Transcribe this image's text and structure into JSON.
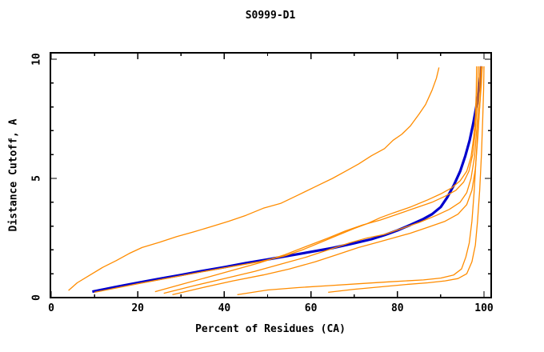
{
  "window": {
    "background": "#ffffff"
  },
  "chart_data": {
    "type": "line",
    "title": "S0999-D1",
    "xlabel": "Percent of Residues (CA)",
    "ylabel": "Distance Cutoff, A",
    "xlim": [
      0,
      100
    ],
    "ylim": [
      0,
      10
    ],
    "grid": false,
    "legend": "none",
    "axis_color": "#000000",
    "x_major_ticks": [
      0,
      20,
      40,
      60,
      80,
      100
    ],
    "x_minor_ticks": [
      10,
      30,
      50,
      70,
      90
    ],
    "x_tick_labels": [
      "0",
      "20",
      "40",
      "60",
      "80",
      "100"
    ],
    "y_major_ticks": [
      0,
      5,
      10
    ],
    "y_minor_ticks": [
      1,
      2,
      3,
      4,
      6,
      7,
      8,
      9
    ],
    "y_tick_labels": [
      "0",
      "5",
      "10"
    ],
    "colors": {
      "highlight_model": "#0000cd",
      "other_models": "#ff8c00"
    },
    "series": [
      {
        "id": "highlight-model",
        "color": "#0000cd",
        "width": 3.2,
        "points": [
          [
            9.5,
            0.25
          ],
          [
            15,
            0.45
          ],
          [
            20,
            0.62
          ],
          [
            25,
            0.79
          ],
          [
            30,
            0.95
          ],
          [
            35,
            1.12
          ],
          [
            40,
            1.28
          ],
          [
            45,
            1.45
          ],
          [
            50,
            1.6
          ],
          [
            55,
            1.76
          ],
          [
            60,
            1.92
          ],
          [
            65,
            2.08
          ],
          [
            70,
            2.28
          ],
          [
            74,
            2.45
          ],
          [
            77,
            2.62
          ],
          [
            80,
            2.82
          ],
          [
            83,
            3.05
          ],
          [
            86,
            3.3
          ],
          [
            88,
            3.5
          ],
          [
            90,
            3.8
          ],
          [
            91.5,
            4.2
          ],
          [
            93,
            4.7
          ],
          [
            94.5,
            5.3
          ],
          [
            95.7,
            5.95
          ],
          [
            96.7,
            6.6
          ],
          [
            97.5,
            7.3
          ],
          [
            98.2,
            8.0
          ],
          [
            98.8,
            8.7
          ],
          [
            99.2,
            9.3
          ],
          [
            99.4,
            9.7
          ]
        ]
      },
      {
        "id": "orange-1",
        "color": "#ff8c00",
        "width": 1.3,
        "points": [
          [
            4,
            0.3
          ],
          [
            6,
            0.62
          ],
          [
            9,
            0.95
          ],
          [
            12,
            1.28
          ],
          [
            15,
            1.55
          ],
          [
            18,
            1.85
          ],
          [
            21,
            2.1
          ],
          [
            25,
            2.32
          ],
          [
            29,
            2.56
          ],
          [
            33,
            2.76
          ],
          [
            37,
            2.98
          ],
          [
            41,
            3.2
          ],
          [
            45,
            3.45
          ],
          [
            49,
            3.75
          ],
          [
            53,
            3.95
          ],
          [
            57,
            4.3
          ],
          [
            61,
            4.65
          ],
          [
            65,
            5.0
          ],
          [
            68,
            5.3
          ],
          [
            71,
            5.6
          ],
          [
            74,
            5.95
          ],
          [
            77,
            6.25
          ],
          [
            79,
            6.6
          ],
          [
            81,
            6.85
          ],
          [
            83,
            7.2
          ],
          [
            85,
            7.7
          ],
          [
            86.5,
            8.1
          ],
          [
            88,
            8.7
          ],
          [
            89,
            9.2
          ],
          [
            89.6,
            9.65
          ]
        ]
      },
      {
        "id": "orange-2",
        "color": "#ff8c00",
        "width": 1.3,
        "points": [
          [
            10,
            0.22
          ],
          [
            20,
            0.58
          ],
          [
            30,
            0.92
          ],
          [
            40,
            1.25
          ],
          [
            48,
            1.5
          ],
          [
            54,
            1.75
          ],
          [
            58,
            2.0
          ],
          [
            62,
            2.3
          ],
          [
            66,
            2.6
          ],
          [
            70,
            2.9
          ],
          [
            73,
            3.1
          ],
          [
            76,
            3.35
          ],
          [
            79,
            3.55
          ],
          [
            83,
            3.8
          ],
          [
            87,
            4.1
          ],
          [
            90,
            4.35
          ],
          [
            92.5,
            4.6
          ],
          [
            94.5,
            4.9
          ],
          [
            96,
            5.3
          ],
          [
            97,
            5.9
          ],
          [
            97.6,
            6.7
          ],
          [
            98,
            7.6
          ],
          [
            98.2,
            8.6
          ],
          [
            98.3,
            9.7
          ]
        ]
      },
      {
        "id": "orange-3",
        "color": "#ff8c00",
        "width": 1.3,
        "points": [
          [
            24,
            0.25
          ],
          [
            30,
            0.55
          ],
          [
            36,
            0.85
          ],
          [
            42,
            1.15
          ],
          [
            48,
            1.45
          ],
          [
            54,
            1.8
          ],
          [
            59,
            2.15
          ],
          [
            64,
            2.5
          ],
          [
            68,
            2.8
          ],
          [
            72,
            3.05
          ],
          [
            76,
            3.25
          ],
          [
            80,
            3.5
          ],
          [
            84,
            3.75
          ],
          [
            88,
            4.0
          ],
          [
            91,
            4.25
          ],
          [
            93.5,
            4.5
          ],
          [
            95.3,
            4.85
          ],
          [
            96.5,
            5.3
          ],
          [
            97.4,
            6.0
          ],
          [
            98,
            7.0
          ],
          [
            98.4,
            8.2
          ],
          [
            98.6,
            9.0
          ],
          [
            98.7,
            9.7
          ]
        ]
      },
      {
        "id": "orange-4",
        "color": "#ff8c00",
        "width": 1.3,
        "points": [
          [
            26,
            0.18
          ],
          [
            33,
            0.5
          ],
          [
            40,
            0.8
          ],
          [
            47,
            1.1
          ],
          [
            53,
            1.4
          ],
          [
            59,
            1.7
          ],
          [
            64,
            2.0
          ],
          [
            69,
            2.3
          ],
          [
            73,
            2.5
          ],
          [
            77,
            2.65
          ],
          [
            81,
            2.9
          ],
          [
            85,
            3.15
          ],
          [
            89,
            3.45
          ],
          [
            92,
            3.7
          ],
          [
            94.5,
            4.0
          ],
          [
            96,
            4.4
          ],
          [
            97,
            5.0
          ],
          [
            97.8,
            5.9
          ],
          [
            98.4,
            7.2
          ],
          [
            98.9,
            8.6
          ],
          [
            99.1,
            9.7
          ]
        ]
      },
      {
        "id": "orange-5",
        "color": "#ff8c00",
        "width": 1.3,
        "points": [
          [
            28,
            0.12
          ],
          [
            35,
            0.42
          ],
          [
            42,
            0.7
          ],
          [
            49,
            0.95
          ],
          [
            55,
            1.2
          ],
          [
            61,
            1.5
          ],
          [
            66,
            1.8
          ],
          [
            71,
            2.1
          ],
          [
            75,
            2.3
          ],
          [
            79,
            2.5
          ],
          [
            83,
            2.7
          ],
          [
            87,
            2.95
          ],
          [
            91,
            3.2
          ],
          [
            94,
            3.5
          ],
          [
            96,
            3.9
          ],
          [
            97.2,
            4.5
          ],
          [
            98,
            5.4
          ],
          [
            98.6,
            6.8
          ],
          [
            99.1,
            8.3
          ],
          [
            99.4,
            9.7
          ]
        ]
      },
      {
        "id": "orange-6",
        "color": "#ff8c00",
        "width": 1.3,
        "points": [
          [
            43,
            0.12
          ],
          [
            50,
            0.32
          ],
          [
            57,
            0.42
          ],
          [
            64,
            0.5
          ],
          [
            71,
            0.58
          ],
          [
            78,
            0.66
          ],
          [
            86,
            0.74
          ],
          [
            90,
            0.82
          ],
          [
            93,
            0.95
          ],
          [
            94.8,
            1.2
          ],
          [
            95.8,
            1.7
          ],
          [
            96.6,
            2.3
          ],
          [
            97.2,
            3.2
          ],
          [
            97.7,
            4.4
          ],
          [
            98.1,
            5.6
          ],
          [
            98.5,
            6.8
          ],
          [
            99,
            8.0
          ],
          [
            99.4,
            9.0
          ],
          [
            99.6,
            9.7
          ]
        ]
      },
      {
        "id": "orange-7",
        "color": "#ff8c00",
        "width": 1.3,
        "points": [
          [
            64,
            0.22
          ],
          [
            70,
            0.35
          ],
          [
            76,
            0.45
          ],
          [
            82,
            0.55
          ],
          [
            87,
            0.62
          ],
          [
            91,
            0.7
          ],
          [
            94,
            0.8
          ],
          [
            96,
            1.0
          ],
          [
            97.2,
            1.5
          ],
          [
            98,
            2.2
          ],
          [
            98.5,
            3.2
          ],
          [
            99,
            4.5
          ],
          [
            99.4,
            6.0
          ],
          [
            99.7,
            7.5
          ],
          [
            99.9,
            8.7
          ],
          [
            100,
            9.7
          ]
        ]
      }
    ]
  }
}
